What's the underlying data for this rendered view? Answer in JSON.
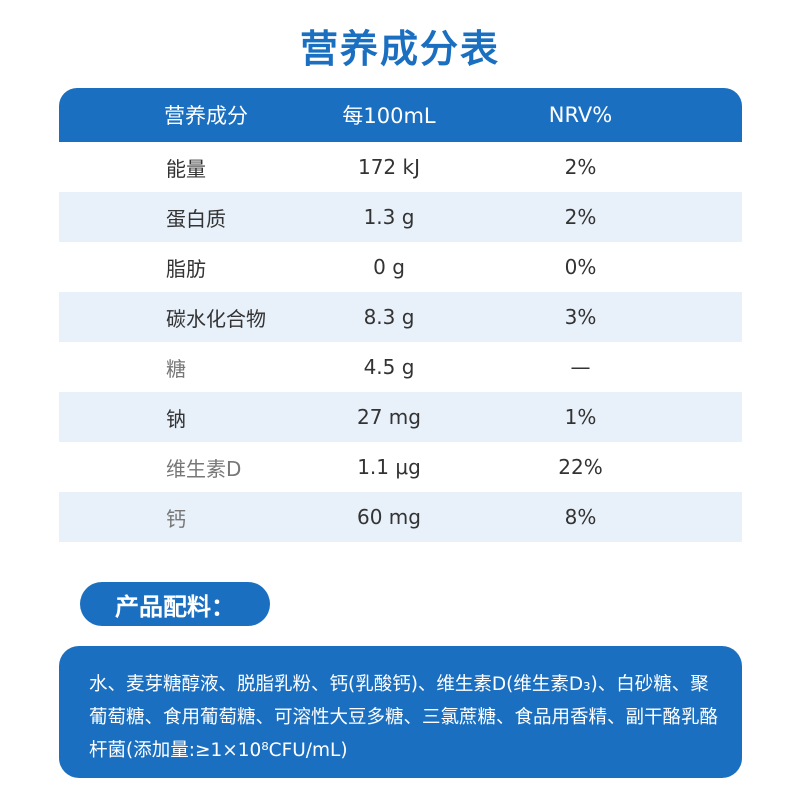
{
  "title": "营养成分表",
  "table": {
    "headers": [
      "营养成分",
      "每100mL",
      "NRV%"
    ],
    "rows": [
      [
        "能量",
        "172 kJ",
        "2%"
      ],
      [
        "蛋白质",
        "1.3 g",
        "2%"
      ],
      [
        "脂肪",
        "0 g",
        "0%"
      ],
      [
        "碳水化合物",
        "8.3 g",
        "3%"
      ],
      [
        "糖",
        "4.5 g",
        "—"
      ],
      [
        "钠",
        "27 mg",
        "1%"
      ],
      [
        "维生素D",
        "1.1 μg",
        "22%"
      ],
      [
        "钙",
        "60 mg",
        "8%"
      ]
    ]
  },
  "ingredients": {
    "label": "产品配料：",
    "text": "水、麦芽糖醇液、脱脂乳粉、钙(乳酸钙)、维生素D(维生素D₃)、白砂糖、聚葡萄糖、食用葡萄糖、可溶性大豆多糖、三氯蔗糖、食品用香精、副干酪乳酪杆菌(添加量:≥1×10⁸CFU/mL)"
  },
  "colors": {
    "accent": "#1b6fc0",
    "row_alt": "#e8f0fa"
  }
}
